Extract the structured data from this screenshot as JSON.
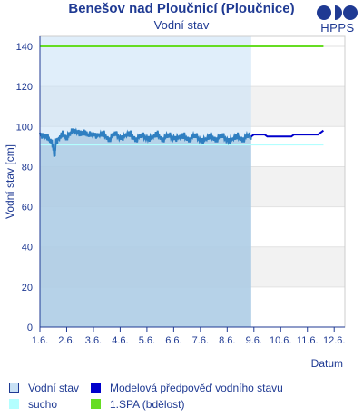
{
  "header": {
    "title": "Benešov nad Ploučnicí (Ploučnice)",
    "subtitle": "Vodní stav",
    "logo_text": "HPPS"
  },
  "legend": {
    "items": [
      {
        "label": "Vodní stav",
        "color": "#c8e1f5",
        "border": "#1f3a93"
      },
      {
        "label": "Modelová předpověď vodního stavu",
        "color": "#0000cc"
      },
      {
        "label": "sucho",
        "color": "#b3ffff"
      },
      {
        "label": "1.SPA (bdělost)",
        "color": "#66dd22"
      }
    ]
  },
  "colors": {
    "observed_line": "#2f7fc1",
    "observed_fill": "#c6e0f5",
    "shade": "#a8c8e2",
    "forecast": "#0000cc",
    "spa1": "#66dd22",
    "drought": "#b3ffff",
    "axis_text": "#1f3a93",
    "band": "#f2f2f2"
  },
  "chart_data": {
    "type": "line",
    "xlabel": "Datum",
    "ylabel": "Vodní stav [cm]",
    "ylim": [
      0,
      145
    ],
    "xlim": [
      0,
      11.4
    ],
    "x_ticks": [
      {
        "x": 0,
        "label": "1.6."
      },
      {
        "x": 1,
        "label": "2.6."
      },
      {
        "x": 2,
        "label": "3.6."
      },
      {
        "x": 3,
        "label": "4.6."
      },
      {
        "x": 4,
        "label": "5.6."
      },
      {
        "x": 5,
        "label": "6.6."
      },
      {
        "x": 6,
        "label": "7.6."
      },
      {
        "x": 7,
        "label": "8.6."
      },
      {
        "x": 8,
        "label": "9.6."
      },
      {
        "x": 9,
        "label": "10.6."
      },
      {
        "x": 10,
        "label": "11.6."
      },
      {
        "x": 11,
        "label": "12.6."
      }
    ],
    "y_ticks": [
      0,
      20,
      40,
      60,
      80,
      100,
      120,
      140
    ],
    "thresholds": [
      {
        "name": "1.SPA (bdělost)",
        "value": 140
      },
      {
        "name": "sucho",
        "value": 91
      }
    ],
    "observed_end": 7.9,
    "series": [
      {
        "name": "Vodní stav",
        "x": [
          0.0,
          0.15,
          0.3,
          0.45,
          0.55,
          0.6,
          0.7,
          0.85,
          1.0,
          1.15,
          1.25,
          1.35,
          1.5,
          1.65,
          1.8,
          2.0,
          2.2,
          2.4,
          2.6,
          2.8,
          3.0,
          3.2,
          3.4,
          3.6,
          3.8,
          4.0,
          4.2,
          4.4,
          4.6,
          4.8,
          5.0,
          5.2,
          5.4,
          5.6,
          5.8,
          6.0,
          6.2,
          6.4,
          6.6,
          6.8,
          7.0,
          7.2,
          7.4,
          7.6,
          7.8,
          7.9
        ],
        "values": [
          97,
          95,
          94,
          93,
          84,
          94,
          93,
          96,
          95,
          96,
          99,
          97,
          96,
          98,
          95,
          97,
          95,
          96,
          94,
          96,
          95,
          95,
          96,
          94,
          95,
          95,
          94,
          96,
          94,
          95,
          95,
          94,
          95,
          94,
          95,
          94,
          93,
          95,
          94,
          95,
          94,
          93,
          95,
          94,
          95,
          95
        ]
      },
      {
        "name": "Modelová předpověď vodního stavu",
        "x": [
          7.9,
          8.0,
          8.4,
          8.5,
          9.0,
          9.4,
          9.5,
          9.9,
          10.0,
          10.2,
          10.4,
          10.6
        ],
        "values": [
          95,
          96,
          96,
          95,
          95,
          95,
          96,
          96,
          96,
          96,
          96,
          98
        ]
      }
    ]
  }
}
